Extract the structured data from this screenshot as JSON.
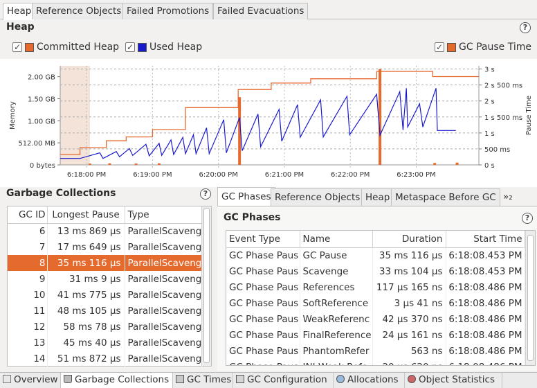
{
  "top_tabs": [
    "Heap",
    "Reference Objects",
    "Failed Promotions",
    "Failed Evacuations"
  ],
  "heap": {
    "title": "Heap",
    "legend": {
      "committed": {
        "label": "Committed Heap",
        "color": "#e56a2e"
      },
      "used": {
        "label": "Used Heap",
        "color": "#1a1acc"
      },
      "pause": {
        "label": "GC Pause Time",
        "color": "#e56a2e"
      }
    }
  },
  "chart_data": {
    "type": "line",
    "ylabel": "Memory",
    "y2label": "Pause Time",
    "y_ticks": [
      "0 bytes",
      "512.00 MB",
      "1.00 GB",
      "1.50 GB",
      "2.00 GB"
    ],
    "y2_ticks": [
      "0 s",
      "500 ms",
      "1 s",
      "1 s 500 ms",
      "2 s",
      "2 s 500 ms",
      "3 s"
    ],
    "x_ticks": [
      "6:18:00 PM",
      "6:19:00 PM",
      "6:20:00 PM",
      "6:21:00 PM",
      "6:22:00 PM",
      "6:23:00 PM"
    ],
    "ylim_mb": [
      0,
      2300
    ],
    "y2lim_s": [
      0,
      3.1
    ],
    "xlim_min": [
      -0.4,
      5.95
    ],
    "committed": [
      [
        -0.4,
        240
      ],
      [
        -0.1,
        240
      ],
      [
        -0.1,
        400
      ],
      [
        0.3,
        400
      ],
      [
        0.3,
        560
      ],
      [
        0.6,
        560
      ],
      [
        0.6,
        650
      ],
      [
        1.0,
        650
      ],
      [
        1.0,
        820
      ],
      [
        1.5,
        820
      ],
      [
        1.5,
        1330
      ],
      [
        2.3,
        1330
      ],
      [
        2.3,
        1750
      ],
      [
        2.8,
        1750
      ],
      [
        2.8,
        1900
      ],
      [
        3.4,
        1900
      ],
      [
        3.4,
        2000
      ],
      [
        4.4,
        2000
      ],
      [
        4.4,
        2170
      ],
      [
        4.8,
        2170
      ],
      [
        5.25,
        2170
      ],
      [
        5.25,
        2050
      ],
      [
        5.95,
        2050
      ]
    ],
    "used": [
      [
        -0.4,
        150
      ],
      [
        -0.1,
        150
      ],
      [
        0.2,
        280
      ],
      [
        0.25,
        150
      ],
      [
        0.45,
        310
      ],
      [
        0.5,
        190
      ],
      [
        0.65,
        380
      ],
      [
        0.7,
        220
      ],
      [
        0.9,
        480
      ],
      [
        0.95,
        210
      ],
      [
        1.1,
        500
      ],
      [
        1.14,
        220
      ],
      [
        1.28,
        580
      ],
      [
        1.32,
        240
      ],
      [
        1.46,
        640
      ],
      [
        1.5,
        260
      ],
      [
        1.62,
        700
      ],
      [
        1.66,
        260
      ],
      [
        1.82,
        860
      ],
      [
        1.86,
        260
      ],
      [
        2.08,
        1050
      ],
      [
        2.12,
        280
      ],
      [
        2.32,
        1100
      ],
      [
        2.36,
        330
      ],
      [
        2.6,
        1180
      ],
      [
        2.64,
        420
      ],
      [
        2.92,
        1290
      ],
      [
        2.96,
        550
      ],
      [
        3.2,
        1400
      ],
      [
        3.24,
        640
      ],
      [
        3.55,
        1510
      ],
      [
        3.59,
        650
      ],
      [
        3.95,
        1590
      ],
      [
        3.99,
        700
      ],
      [
        4.4,
        1640
      ],
      [
        4.45,
        690
      ],
      [
        4.75,
        1700
      ],
      [
        4.8,
        810
      ],
      [
        4.85,
        1780
      ],
      [
        4.87,
        880
      ],
      [
        5.05,
        1420
      ],
      [
        5.1,
        880
      ],
      [
        5.3,
        1780
      ],
      [
        5.32,
        800
      ],
      [
        5.6,
        800
      ]
    ],
    "pause_s": [
      [
        0.35,
        0.05
      ],
      [
        0.75,
        0.04
      ],
      [
        1.1,
        0.05
      ],
      [
        2.32,
        2.12
      ],
      [
        4.45,
        3.0
      ],
      [
        5.28,
        0.06
      ],
      [
        5.62,
        0.07
      ],
      [
        0.05,
        0.04
      ]
    ],
    "selected_range_min": [
      -0.4,
      0.05
    ]
  },
  "gc_list": {
    "title": "Garbage Collections",
    "columns": [
      "GC ID",
      "Longest Pause",
      "Type"
    ],
    "rows": [
      [
        "6",
        "13 ms 869 µs",
        "ParallelScaveng"
      ],
      [
        "7",
        "17 ms 649 µs",
        "ParallelScaveng"
      ],
      [
        "8",
        "35 ms 116 µs",
        "ParallelScaveng"
      ],
      [
        "9",
        "31 ms 9 µs",
        "ParallelScaveng"
      ],
      [
        "10",
        "41 ms 775 µs",
        "ParallelScaveng"
      ],
      [
        "11",
        "48 ms 105 µs",
        "ParallelScaveng"
      ],
      [
        "12",
        "58 ms 78 µs",
        "ParallelScaveng"
      ],
      [
        "13",
        "45 ms 40 µs",
        "ParallelScaveng"
      ],
      [
        "14",
        "51 ms 872 µs",
        "ParallelScaveng"
      ]
    ],
    "selected_index": 2
  },
  "detail_tabs": [
    "GC Phases",
    "Reference Objects",
    "Heap",
    "Metaspace Before GC",
    "»₂"
  ],
  "gc_phases": {
    "title": "GC Phases",
    "columns": [
      "Event Type",
      "Name",
      "Duration",
      "Start Time"
    ],
    "rows": [
      [
        "GC Phase Paus",
        "GC Pause",
        "35 ms 116 µs",
        "6:18:08.453 PM"
      ],
      [
        "GC Phase Paus",
        "Scavenge",
        "33 ms 104 µs",
        "6:18:08.453 PM"
      ],
      [
        "GC Phase Paus",
        "References",
        "117 µs 165 ns",
        "6:18:08.486 PM"
      ],
      [
        "GC Phase Paus",
        "SoftReference",
        "3 µs 41 ns",
        "6:18:08.486 PM"
      ],
      [
        "GC Phase Paus",
        "WeakReferenc",
        "42 µs 370 ns",
        "6:18:08.486 PM"
      ],
      [
        "GC Phase Paus",
        "FinalReference",
        "24 µs 161 ns",
        "6:18:08.486 PM"
      ],
      [
        "GC Phase Paus",
        "PhantomRefer",
        "563 ns",
        "6:18:08.486 PM"
      ],
      [
        "GC Phase Paus",
        "JNI Weak Refe",
        "20 µs 620 ns",
        "6:18:08.486 PM"
      ]
    ]
  },
  "bottom_tabs": [
    "Overview",
    "Garbage Collections",
    "GC Times",
    "GC Configuration",
    "Allocations",
    "Object Statistics"
  ]
}
